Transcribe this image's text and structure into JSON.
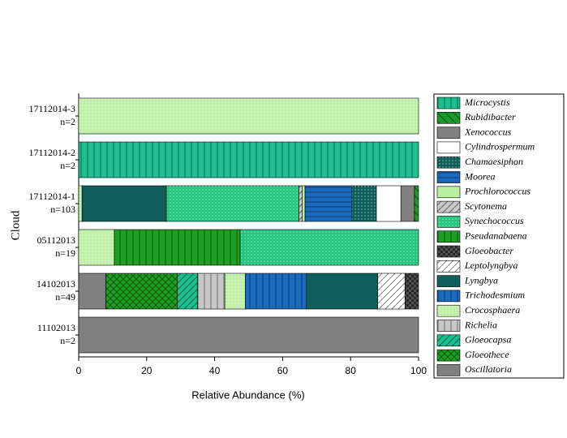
{
  "chart_data": {
    "type": "stacked-barh",
    "xlabel": "Relative Abundance (%)",
    "ylabel": "Cloud",
    "categories": [
      "17112014-3",
      "17112014-2",
      "17112014-1",
      "05112013",
      "14102013",
      "11102013"
    ],
    "category_n": [
      "n=2",
      "n=2",
      "n=103",
      "n=19",
      "n=49",
      "n=2"
    ],
    "xlim": [
      0,
      100
    ],
    "xticks": [
      0,
      20,
      40,
      60,
      80,
      100
    ],
    "series": [
      {
        "name": "Microcystis",
        "color": "#1dbf8f",
        "pattern": "vlines",
        "values": [
          null,
          100,
          null,
          null,
          null,
          null
        ]
      },
      {
        "name": "Rubidibacter",
        "color": "#1a9a2a",
        "pattern": "bdlines",
        "values": [
          null,
          null,
          1.2,
          null,
          null,
          null
        ]
      },
      {
        "name": "Xenococcus",
        "color": "#808080",
        "pattern": "none",
        "values": [
          null,
          null,
          4,
          null,
          null,
          null
        ]
      },
      {
        "name": "Cylindrospermum",
        "color": "#ffffff",
        "pattern": "none",
        "values": [
          null,
          null,
          7.2,
          null,
          null,
          null
        ]
      },
      {
        "name": "Chamaesiphon",
        "color": "#0e5e5a",
        "pattern": "dots",
        "values": [
          null,
          null,
          7.2,
          null,
          null,
          null
        ]
      },
      {
        "name": "Moorea",
        "color": "#1a6bbf",
        "pattern": "hlines",
        "values": [
          null,
          null,
          13.8,
          null,
          null,
          null
        ]
      },
      {
        "name": "Prochlorococcus",
        "color": "#b8f0a0",
        "pattern": "none",
        "values": [
          null,
          null,
          0.8,
          null,
          null,
          null
        ]
      },
      {
        "name": "Scytonema",
        "color": "#c8c8c8",
        "pattern": "dlines",
        "values": [
          null,
          null,
          1,
          null,
          null,
          null
        ]
      },
      {
        "name": "Synechococcus",
        "color": "#25c47f",
        "pattern": "dots",
        "values": [
          null,
          null,
          39,
          52.5,
          null,
          null
        ]
      },
      {
        "name": "Pseudanabaena",
        "color": "#1e9e22",
        "pattern": "vlines",
        "values": [
          null,
          null,
          null,
          37,
          null,
          null
        ]
      },
      {
        "name": "Gloeobacter",
        "color": "#505050",
        "pattern": "check",
        "values": [
          null,
          null,
          null,
          null,
          4,
          null
        ]
      },
      {
        "name": "Leptolyngbya",
        "color": "#ffffff",
        "pattern": "dlines",
        "values": [
          null,
          null,
          null,
          null,
          8,
          null
        ]
      },
      {
        "name": "Lyngbya",
        "color": "#0e5e5a",
        "pattern": "none",
        "values": [
          null,
          null,
          24.8,
          null,
          21,
          null
        ]
      },
      {
        "name": "Trichodesmium",
        "color": "#1a6bbf",
        "pattern": "vlines",
        "values": [
          null,
          null,
          null,
          null,
          18,
          null
        ]
      },
      {
        "name": "Crocosphaera",
        "color": "#c0f0a8",
        "pattern": "dots",
        "values": [
          100,
          null,
          1,
          10.5,
          6,
          null
        ]
      },
      {
        "name": "Richelia",
        "color": "#c8c8c8",
        "pattern": "vlines",
        "values": [
          null,
          null,
          null,
          null,
          8,
          null
        ]
      },
      {
        "name": "Gloeocapsa",
        "color": "#1dbf8f",
        "pattern": "dlines",
        "values": [
          null,
          null,
          null,
          null,
          6,
          null
        ]
      },
      {
        "name": "Gloeothece",
        "color": "#1e9e22",
        "pattern": "cross",
        "values": [
          null,
          null,
          null,
          null,
          21,
          null
        ]
      },
      {
        "name": "Oscillatoria",
        "color": "#808080",
        "pattern": "none",
        "values": [
          null,
          null,
          null,
          null,
          8,
          100
        ]
      }
    ]
  }
}
